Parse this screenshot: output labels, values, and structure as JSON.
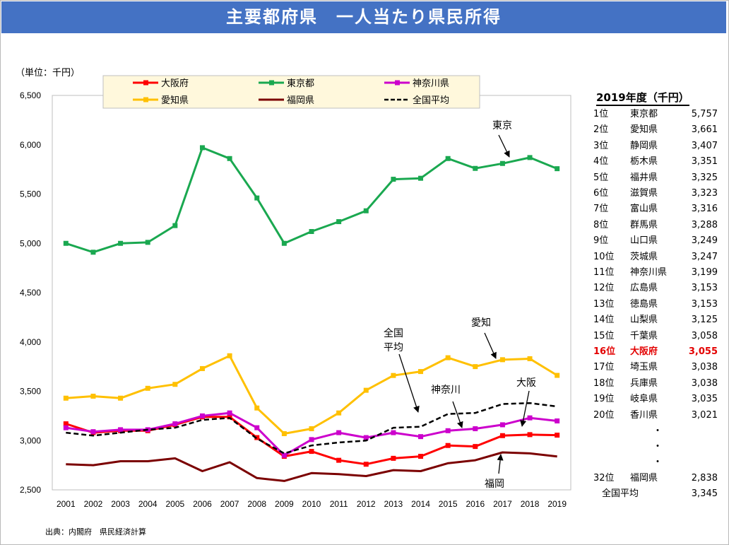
{
  "title": "主要都府県　一人当たり県民所得",
  "unit_label": "（単位：千円）",
  "source": "出典：内閣府　県民経済計算",
  "chart_data": {
    "type": "line",
    "title": "主要都府県　一人当たり県民所得",
    "ylabel": "（単位：千円）",
    "xlabel": "",
    "ylim": [
      2500,
      6500
    ],
    "yticks": [
      "2,500",
      "3,000",
      "3,500",
      "4,000",
      "4,500",
      "5,000",
      "5,500",
      "6,000",
      "6,500"
    ],
    "yticks_values": [
      2500,
      3000,
      3500,
      4000,
      4500,
      5000,
      5500,
      6000,
      6500
    ],
    "categories": [
      "2001",
      "2002",
      "2003",
      "2004",
      "2005",
      "2006",
      "2007",
      "2008",
      "2009",
      "2010",
      "2011",
      "2012",
      "2013",
      "2014",
      "2015",
      "2016",
      "2017",
      "2018",
      "2019"
    ],
    "grid": false,
    "legend": "top",
    "series": [
      {
        "name": "大阪府",
        "color": "#ff0000",
        "style": "solid-marker",
        "values": [
          3170,
          3080,
          3100,
          3100,
          3160,
          3240,
          3240,
          3030,
          2840,
          2890,
          2800,
          2760,
          2820,
          2840,
          2950,
          2940,
          3050,
          3060,
          3055
        ]
      },
      {
        "name": "東京都",
        "color": "#1aa850",
        "style": "solid-marker",
        "values": [
          5000,
          4910,
          5000,
          5010,
          5180,
          5970,
          5860,
          5460,
          5000,
          5120,
          5220,
          5330,
          5650,
          5660,
          5860,
          5760,
          5810,
          5870,
          5757
        ]
      },
      {
        "name": "神奈川県",
        "color": "#cc00cc",
        "style": "solid-marker",
        "values": [
          3130,
          3090,
          3110,
          3110,
          3170,
          3250,
          3280,
          3130,
          2850,
          3010,
          3080,
          3030,
          3080,
          3040,
          3100,
          3120,
          3160,
          3230,
          3199
        ]
      },
      {
        "name": "愛知県",
        "color": "#ffc000",
        "style": "solid-marker",
        "values": [
          3430,
          3450,
          3430,
          3530,
          3570,
          3730,
          3860,
          3330,
          3070,
          3120,
          3280,
          3510,
          3660,
          3700,
          3840,
          3750,
          3820,
          3830,
          3661
        ]
      },
      {
        "name": "福岡県",
        "color": "#7b0000",
        "style": "solid",
        "values": [
          2760,
          2750,
          2790,
          2790,
          2820,
          2690,
          2780,
          2620,
          2590,
          2670,
          2660,
          2640,
          2700,
          2690,
          2770,
          2800,
          2880,
          2870,
          2838
        ]
      },
      {
        "name": "全国平均",
        "color": "#000000",
        "style": "dashed",
        "values": [
          3080,
          3050,
          3080,
          3110,
          3130,
          3210,
          3230,
          3020,
          2870,
          2950,
          2980,
          3000,
          3130,
          3140,
          3270,
          3280,
          3370,
          3380,
          3345
        ]
      }
    ],
    "annotations": [
      {
        "text": "東京"
      },
      {
        "text": "愛知"
      },
      {
        "text": "全国"
      },
      {
        "text": "平均"
      },
      {
        "text": "神奈川"
      },
      {
        "text": "大阪"
      },
      {
        "text": "福岡"
      }
    ]
  },
  "ranking": {
    "title": "2019年度（千円）",
    "rows": [
      {
        "rank": "1位",
        "pref": "東京都",
        "value": "5,757"
      },
      {
        "rank": "2位",
        "pref": "愛知県",
        "value": "3,661"
      },
      {
        "rank": "3位",
        "pref": "静岡県",
        "value": "3,407"
      },
      {
        "rank": "4位",
        "pref": "栃木県",
        "value": "3,351"
      },
      {
        "rank": "5位",
        "pref": "福井県",
        "value": "3,325"
      },
      {
        "rank": "6位",
        "pref": "滋賀県",
        "value": "3,323"
      },
      {
        "rank": "7位",
        "pref": "富山県",
        "value": "3,316"
      },
      {
        "rank": "8位",
        "pref": "群馬県",
        "value": "3,288"
      },
      {
        "rank": "9位",
        "pref": "山口県",
        "value": "3,249"
      },
      {
        "rank": "10位",
        "pref": "茨城県",
        "value": "3,247"
      },
      {
        "rank": "11位",
        "pref": "神奈川県",
        "value": "3,199"
      },
      {
        "rank": "12位",
        "pref": "広島県",
        "value": "3,153"
      },
      {
        "rank": "13位",
        "pref": "徳島県",
        "value": "3,153"
      },
      {
        "rank": "14位",
        "pref": "山梨県",
        "value": "3,125"
      },
      {
        "rank": "15位",
        "pref": "千葉県",
        "value": "3,058"
      },
      {
        "rank": "16位",
        "pref": "大阪府",
        "value": "3,055",
        "highlight": true
      },
      {
        "rank": "17位",
        "pref": "埼玉県",
        "value": "3,038"
      },
      {
        "rank": "18位",
        "pref": "兵庫県",
        "value": "3,038"
      },
      {
        "rank": "19位",
        "pref": "岐阜県",
        "value": "3,035"
      },
      {
        "rank": "20位",
        "pref": "香川県",
        "value": "3,021"
      }
    ],
    "ellipsis": [
      "・",
      "・",
      "・"
    ],
    "extra_row": {
      "rank": "32位",
      "pref": "福岡県",
      "value": "2,838"
    },
    "average_row": {
      "label": "全国平均",
      "value": "3,345"
    }
  }
}
